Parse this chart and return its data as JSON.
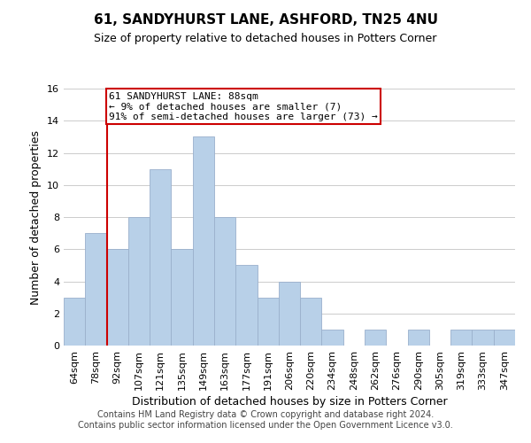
{
  "title": "61, SANDYHURST LANE, ASHFORD, TN25 4NU",
  "subtitle": "Size of property relative to detached houses in Potters Corner",
  "xlabel": "Distribution of detached houses by size in Potters Corner",
  "ylabel": "Number of detached properties",
  "bin_labels": [
    "64sqm",
    "78sqm",
    "92sqm",
    "107sqm",
    "121sqm",
    "135sqm",
    "149sqm",
    "163sqm",
    "177sqm",
    "191sqm",
    "206sqm",
    "220sqm",
    "234sqm",
    "248sqm",
    "262sqm",
    "276sqm",
    "290sqm",
    "305sqm",
    "319sqm",
    "333sqm",
    "347sqm"
  ],
  "bar_values": [
    3,
    7,
    6,
    8,
    11,
    6,
    13,
    8,
    5,
    3,
    4,
    3,
    1,
    0,
    1,
    0,
    1,
    0,
    1,
    1,
    1
  ],
  "bar_color": "#b8d0e8",
  "bar_edgecolor": "#9ab0cc",
  "marker_line_color": "#cc0000",
  "annotation_line1": "61 SANDYHURST LANE: 88sqm",
  "annotation_line2": "← 9% of detached houses are smaller (7)",
  "annotation_line3": "91% of semi-detached houses are larger (73) →",
  "annotation_box_edgecolor": "#cc0000",
  "annotation_box_facecolor": "#ffffff",
  "ylim": [
    0,
    16
  ],
  "yticks": [
    0,
    2,
    4,
    6,
    8,
    10,
    12,
    14,
    16
  ],
  "footer_line1": "Contains HM Land Registry data © Crown copyright and database right 2024.",
  "footer_line2": "Contains public sector information licensed under the Open Government Licence v3.0.",
  "background_color": "#ffffff",
  "grid_color": "#cccccc",
  "title_fontsize": 11,
  "subtitle_fontsize": 9,
  "ylabel_fontsize": 9,
  "xlabel_fontsize": 9,
  "tick_fontsize": 8,
  "footer_fontsize": 7,
  "annotation_fontsize": 8
}
